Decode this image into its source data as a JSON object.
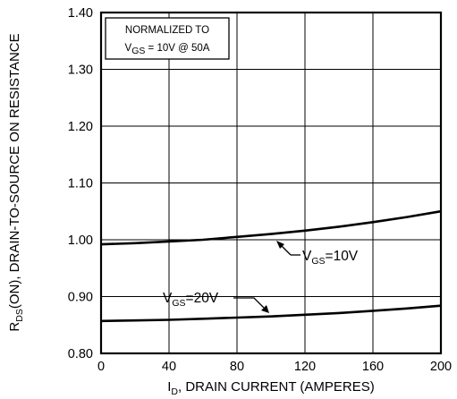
{
  "chart_data": {
    "type": "line",
    "x": [
      0,
      20,
      40,
      60,
      80,
      100,
      120,
      140,
      160,
      180,
      200
    ],
    "xlim": [
      0,
      200
    ],
    "ylim": [
      0.8,
      1.4
    ],
    "x_ticks": [
      "0",
      "40",
      "80",
      "120",
      "160",
      "200"
    ],
    "y_ticks": [
      "0.80",
      "0.90",
      "1.00",
      "1.10",
      "1.20",
      "1.30",
      "1.40"
    ],
    "xlabel": {
      "prefix": "I",
      "sub": "D",
      "rest": ", DRAIN CURRENT (AMPERES)"
    },
    "ylabel": {
      "prefix": "R",
      "sub": "DS",
      "rest": "(ON), DRAIN-TO-SOURCE ON RESISTANCE"
    },
    "grid": true,
    "series": [
      {
        "label": {
          "prefix": "V",
          "sub": "GS",
          "rest": "=10V"
        },
        "values": [
          0.992,
          0.994,
          0.997,
          1.0,
          1.005,
          1.01,
          1.016,
          1.023,
          1.031,
          1.04,
          1.05
        ]
      },
      {
        "label": {
          "prefix": "V",
          "sub": "GS",
          "rest": "=20V"
        },
        "values": [
          0.857,
          0.858,
          0.859,
          0.861,
          0.863,
          0.865,
          0.868,
          0.871,
          0.875,
          0.879,
          0.884
        ]
      }
    ],
    "annotation": {
      "line1": "NORMALIZED  TO",
      "line2": {
        "prefix": "V",
        "sub": "GS",
        "rest": " = 10V  @  50A"
      }
    }
  }
}
